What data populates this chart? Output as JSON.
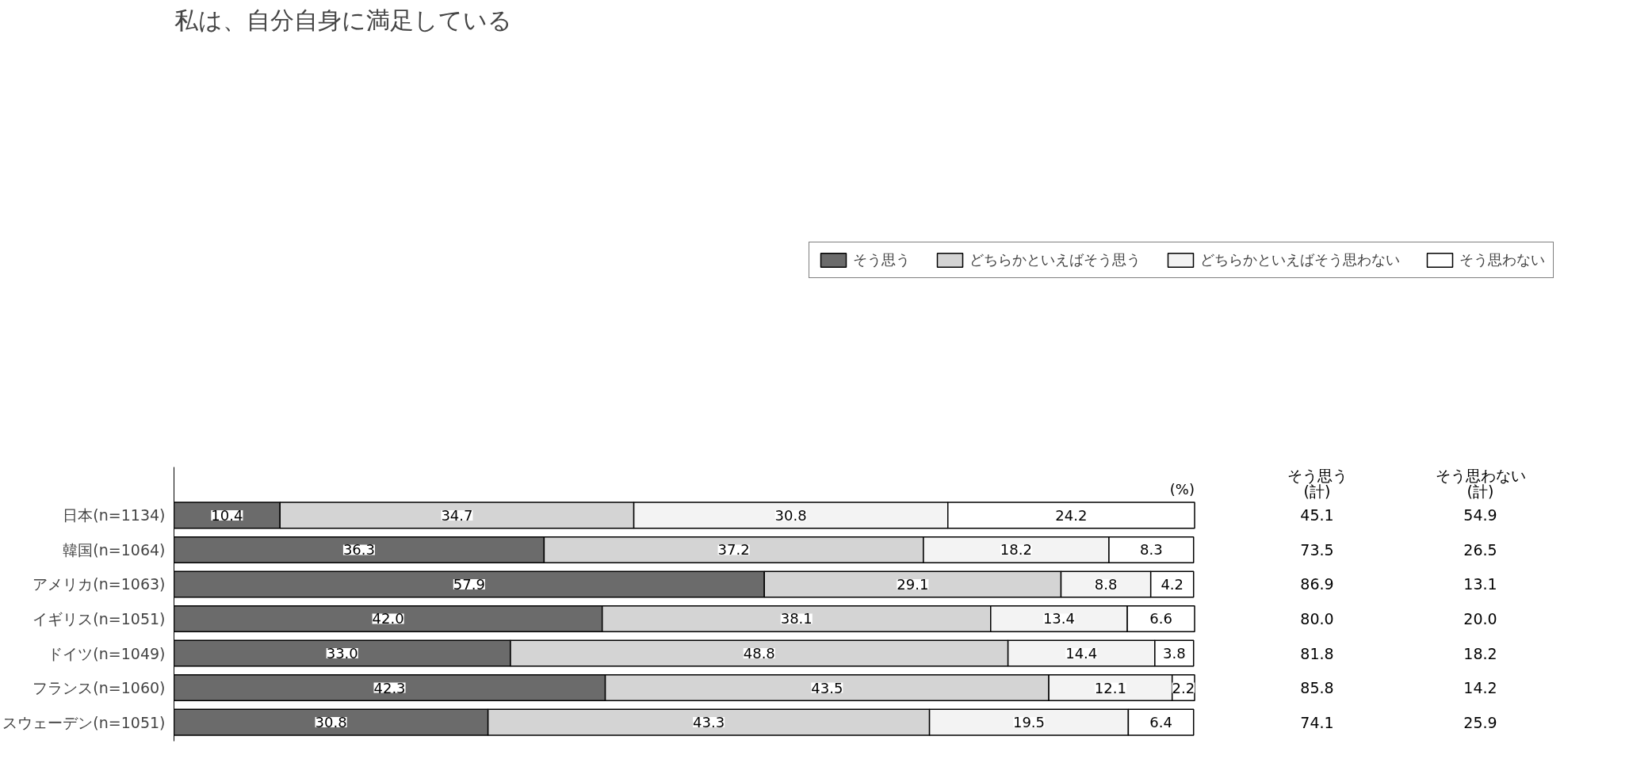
{
  "chart_data": {
    "type": "bar",
    "orientation": "horizontal",
    "stacked": true,
    "title": "私は、自分自身に満足している",
    "categories": [
      "日本(n=1134)",
      "韓国(n=1064)",
      "アメリカ(n=1063)",
      "イギリス(n=1051)",
      "ドイツ(n=1049)",
      "フランス(n=1060)",
      "スウェーデン(n=1051)"
    ],
    "series": [
      {
        "name": "そう思う",
        "color": "#6b6b6b",
        "values": [
          10.4,
          36.3,
          57.9,
          42.0,
          33.0,
          42.3,
          30.8
        ],
        "value_labels": [
          "10.4",
          "36.3",
          "57.9",
          "42.0",
          "33.0",
          "42.3",
          "30.8"
        ]
      },
      {
        "name": "どちらかといえばそう思う",
        "color": "#d4d4d4",
        "values": [
          34.7,
          37.2,
          29.1,
          38.1,
          48.8,
          43.5,
          43.3
        ],
        "value_labels": [
          "34.7",
          "37.2",
          "29.1",
          "38.1",
          "48.8",
          "43.5",
          "43.3"
        ]
      },
      {
        "name": "どちらかといえばそう思わない",
        "color": "#f3f3f3",
        "values": [
          30.8,
          18.2,
          8.8,
          13.4,
          14.4,
          12.1,
          19.5
        ],
        "value_labels": [
          "30.8",
          "18.2",
          "8.8",
          "13.4",
          "14.4",
          "12.1",
          "19.5"
        ]
      },
      {
        "name": "そう思わない",
        "color": "#ffffff",
        "values": [
          24.2,
          8.3,
          4.2,
          6.6,
          3.8,
          2.2,
          6.4
        ],
        "value_labels": [
          "24.2",
          "8.3",
          "4.2",
          "6.6",
          "3.8",
          "2.2",
          "6.4"
        ]
      }
    ],
    "legend": "top",
    "grid": false,
    "annotations": [
      "(%)",
      "そう思う\n(計)",
      "そう思わない\n(計)",
      "45.1",
      "54.9",
      "73.5",
      "26.5",
      "86.9",
      "13.1",
      "80.0",
      "20.0",
      "81.8",
      "18.2",
      "85.8",
      "14.2",
      "74.1",
      "25.9"
    ]
  }
}
